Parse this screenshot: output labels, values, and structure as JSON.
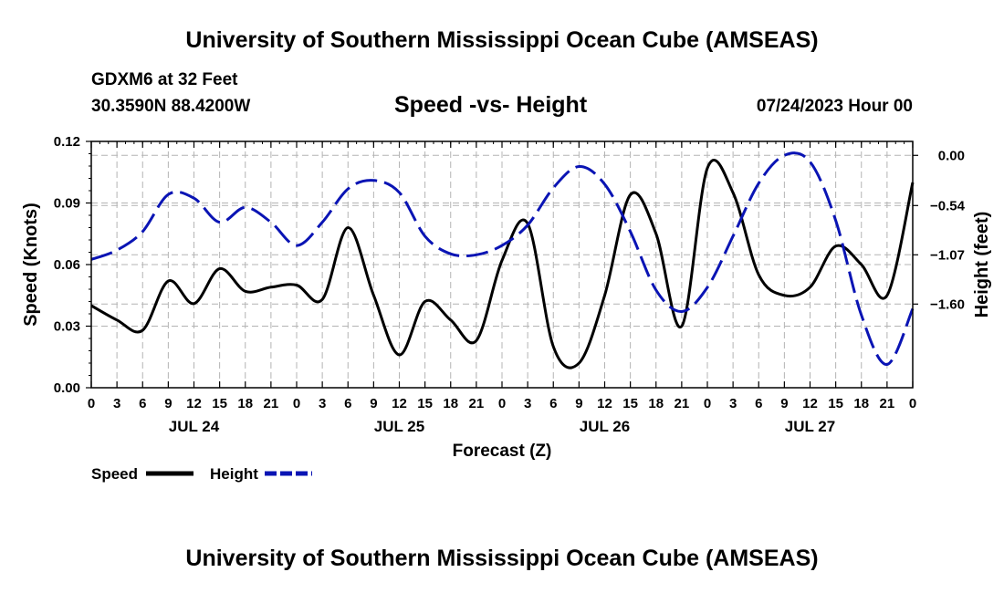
{
  "page": {
    "header_title": "University of Southern Mississippi Ocean Cube (AMSEAS)",
    "footer_title": "University of Southern Mississippi Ocean Cube (AMSEAS)",
    "station": "GDXM6 at 32 Feet",
    "location": "30.3590N  88.4200W",
    "date": "07/24/2023 Hour 00"
  },
  "chart_data": {
    "type": "line",
    "title": "Speed -vs- Height",
    "xlabel": "Forecast (Z)",
    "ylabel": "Speed (Knots)",
    "y2label": "Height (feet)",
    "x_unit": "forecast hour",
    "xlim": [
      0,
      96
    ],
    "ylim": [
      0,
      0.12
    ],
    "y2lim": [
      -2.5,
      0.15
    ],
    "grid": true,
    "yticks": [
      {
        "value": 0.0,
        "label": "0.00"
      },
      {
        "value": 0.03,
        "label": "0.03"
      },
      {
        "value": 0.06,
        "label": "0.06"
      },
      {
        "value": 0.09,
        "label": "0.09"
      },
      {
        "value": 0.12,
        "label": "0.12"
      }
    ],
    "y2ticks": [
      {
        "value": 0.0,
        "label": "0.00"
      },
      {
        "value": -0.54,
        "label": "−0.54"
      },
      {
        "value": -1.07,
        "label": "−1.07"
      },
      {
        "value": -1.6,
        "label": "−1.60"
      }
    ],
    "xticks": [
      {
        "value": 0,
        "label": "0"
      },
      {
        "value": 3,
        "label": "3"
      },
      {
        "value": 6,
        "label": "6"
      },
      {
        "value": 9,
        "label": "9"
      },
      {
        "value": 12,
        "label": "12"
      },
      {
        "value": 15,
        "label": "15"
      },
      {
        "value": 18,
        "label": "18"
      },
      {
        "value": 21,
        "label": "21"
      },
      {
        "value": 24,
        "label": "0"
      },
      {
        "value": 27,
        "label": "3"
      },
      {
        "value": 30,
        "label": "6"
      },
      {
        "value": 33,
        "label": "9"
      },
      {
        "value": 36,
        "label": "12"
      },
      {
        "value": 39,
        "label": "15"
      },
      {
        "value": 42,
        "label": "18"
      },
      {
        "value": 45,
        "label": "21"
      },
      {
        "value": 48,
        "label": "0"
      },
      {
        "value": 51,
        "label": "3"
      },
      {
        "value": 54,
        "label": "6"
      },
      {
        "value": 57,
        "label": "9"
      },
      {
        "value": 60,
        "label": "12"
      },
      {
        "value": 63,
        "label": "15"
      },
      {
        "value": 66,
        "label": "18"
      },
      {
        "value": 69,
        "label": "21"
      },
      {
        "value": 72,
        "label": "0"
      },
      {
        "value": 75,
        "label": "3"
      },
      {
        "value": 78,
        "label": "6"
      },
      {
        "value": 81,
        "label": "9"
      },
      {
        "value": 84,
        "label": "12"
      },
      {
        "value": 87,
        "label": "15"
      },
      {
        "value": 90,
        "label": "18"
      },
      {
        "value": 93,
        "label": "21"
      },
      {
        "value": 96,
        "label": "0"
      }
    ],
    "day_labels": [
      {
        "value": 12,
        "label": "JUL 24"
      },
      {
        "value": 36,
        "label": "JUL 25"
      },
      {
        "value": 60,
        "label": "JUL 26"
      },
      {
        "value": 84,
        "label": "JUL 27"
      }
    ],
    "series": [
      {
        "name": "Speed",
        "axis": "left",
        "color": "#000000",
        "dash": "solid",
        "x": [
          0,
          3,
          6,
          9,
          12,
          15,
          18,
          21,
          24,
          27,
          30,
          33,
          36,
          39,
          42,
          45,
          48,
          51,
          54,
          57,
          60,
          63,
          66,
          69,
          72,
          75,
          78,
          81,
          84,
          87,
          90,
          93,
          96
        ],
        "values": [
          0.04,
          0.033,
          0.028,
          0.052,
          0.041,
          0.058,
          0.047,
          0.049,
          0.05,
          0.043,
          0.078,
          0.045,
          0.016,
          0.042,
          0.033,
          0.023,
          0.062,
          0.08,
          0.02,
          0.012,
          0.045,
          0.094,
          0.075,
          0.03,
          0.107,
          0.095,
          0.055,
          0.045,
          0.049,
          0.069,
          0.06,
          0.045,
          0.1
        ]
      },
      {
        "name": "Height",
        "axis": "right",
        "color": "#0a14b4",
        "dash": "dashed",
        "x": [
          0,
          3,
          6,
          9,
          12,
          15,
          18,
          21,
          24,
          27,
          30,
          33,
          36,
          39,
          42,
          45,
          48,
          51,
          54,
          57,
          60,
          63,
          66,
          69,
          72,
          75,
          78,
          81,
          84,
          87,
          90,
          93,
          96
        ],
        "values": [
          -1.12,
          -1.02,
          -0.82,
          -0.42,
          -0.46,
          -0.72,
          -0.56,
          -0.72,
          -0.97,
          -0.72,
          -0.36,
          -0.27,
          -0.4,
          -0.87,
          -1.06,
          -1.07,
          -0.97,
          -0.75,
          -0.35,
          -0.12,
          -0.31,
          -0.82,
          -1.45,
          -1.68,
          -1.42,
          -0.87,
          -0.3,
          0.0,
          -0.07,
          -0.7,
          -1.72,
          -2.25,
          -1.65
        ]
      }
    ],
    "legend": {
      "position": "bottom-left",
      "items": [
        {
          "label": "Speed",
          "color": "#000000"
        },
        {
          "label": "Height",
          "color": "#0a14b4"
        }
      ]
    }
  }
}
